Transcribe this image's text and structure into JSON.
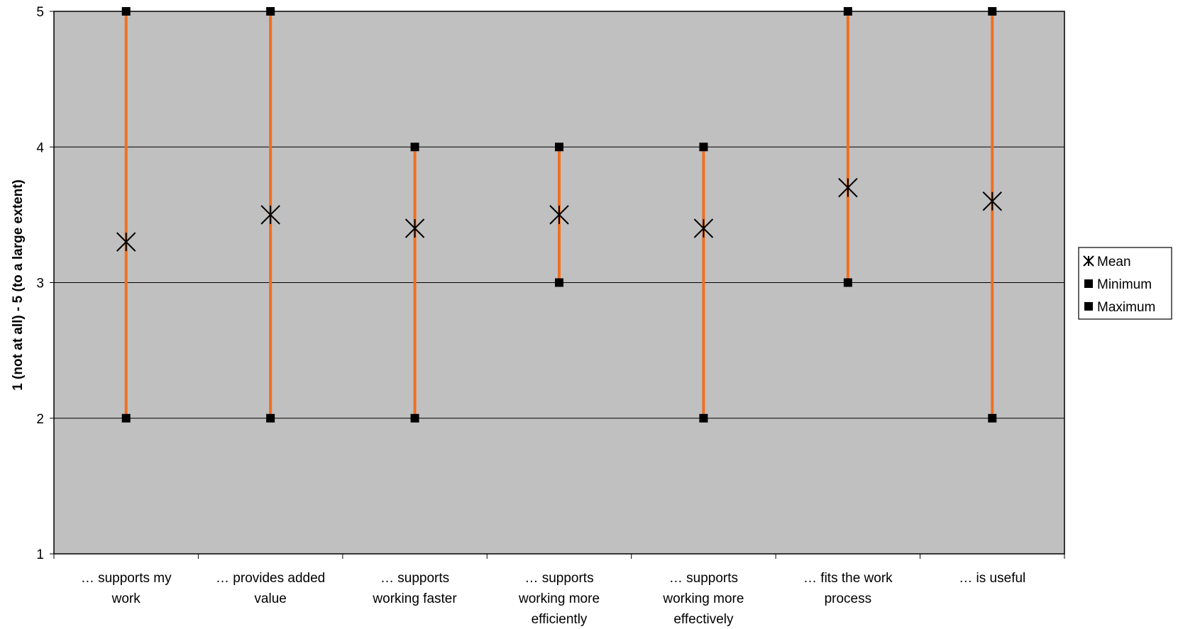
{
  "chart_data": {
    "type": "scatter",
    "title": "",
    "xlabel": "",
    "ylabel": "1 (not at all) - 5 (to a large extent)",
    "ylim": [
      1,
      5
    ],
    "yticks": [
      "1",
      "2",
      "3",
      "4",
      "5"
    ],
    "grid": true,
    "legend_position": "right",
    "categories": [
      [
        "… supports my",
        "work"
      ],
      [
        "… provides added",
        "value"
      ],
      [
        "… supports",
        "working faster"
      ],
      [
        "… supports",
        "working more",
        "efficiently"
      ],
      [
        "… supports",
        "working more",
        "effectively"
      ],
      [
        "… fits the work",
        "process"
      ],
      [
        "… is useful"
      ]
    ],
    "series": [
      {
        "name": "Mean",
        "marker": "asterisk",
        "values": [
          3.3,
          3.5,
          3.4,
          3.5,
          3.4,
          3.7,
          3.6
        ]
      },
      {
        "name": "Minimum",
        "marker": "square",
        "values": [
          2,
          2,
          2,
          3,
          2,
          3,
          2
        ]
      },
      {
        "name": "Maximum",
        "marker": "square",
        "values": [
          5,
          5,
          4,
          4,
          4,
          5,
          5
        ]
      }
    ],
    "colors": {
      "plot_background": "#c0c0c0",
      "range_line": "#f07020",
      "marker": "#000000",
      "gridline": "#000000"
    }
  }
}
